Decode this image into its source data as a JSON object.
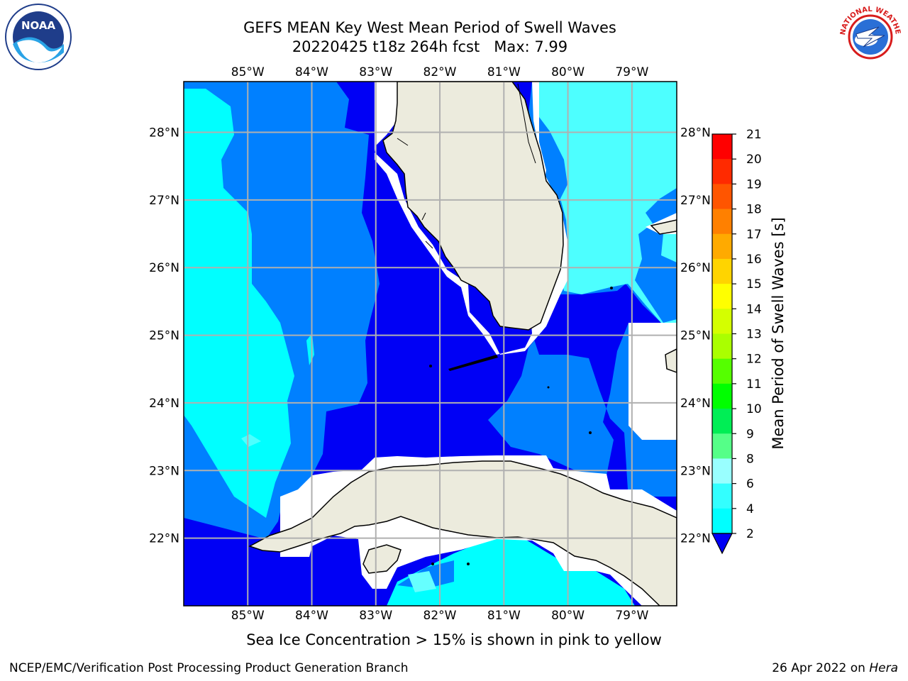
{
  "header": {
    "title_line1": "GEFS MEAN Key West Mean Period of Swell Waves",
    "title_line2": "20220425 t18z 264h fcst   Max: 7.99"
  },
  "logos": {
    "left": {
      "icon": "noaa-logo-icon",
      "text": "NOAA"
    },
    "right": {
      "icon": "nws-logo-icon",
      "ring_text": "NATIONAL WEATHER SERVICE"
    }
  },
  "map": {
    "lon_labels": [
      "85°W",
      "84°W",
      "83°W",
      "82°W",
      "81°W",
      "80°W",
      "79°W"
    ],
    "lat_labels": [
      "28°N",
      "27°N",
      "26°N",
      "25°N",
      "24°N",
      "23°N",
      "22°N"
    ],
    "extent": {
      "lon_min": -86.0,
      "lon_max": -78.3,
      "lat_min": 21.0,
      "lat_max": 28.75
    },
    "colors": {
      "land": "#ecebdd",
      "band_2_4": "#0000f5",
      "band_4_6": "#0080ff",
      "band_6_8": "#00ffff",
      "band_8_9": "#4dffff",
      "grid": "#b0b0b0"
    }
  },
  "colorbar": {
    "label": "Mean Period of Swell Waves [s]",
    "ticks": [
      "21",
      "20",
      "19",
      "18",
      "17",
      "16",
      "15",
      "14",
      "13",
      "12",
      "11",
      "10",
      "9",
      "8",
      "6",
      "4",
      "2"
    ],
    "colors": [
      "#ff0000",
      "#ff2a00",
      "#ff5500",
      "#ff8000",
      "#ffaa00",
      "#ffd400",
      "#ffff00",
      "#d4ff00",
      "#aaff00",
      "#55ff00",
      "#00ff00",
      "#00ee55",
      "#55ff88",
      "#99ffff",
      "#33ffff",
      "#00ffff",
      "#0080ff",
      "#0000f5"
    ]
  },
  "ice_note": "Sea Ice Concentration > 15% is shown in pink to yellow",
  "footer": {
    "left": "NCEP/EMC/Verification Post Processing Product Generation Branch",
    "date": "26 Apr 2022 on ",
    "host": "Hera"
  }
}
